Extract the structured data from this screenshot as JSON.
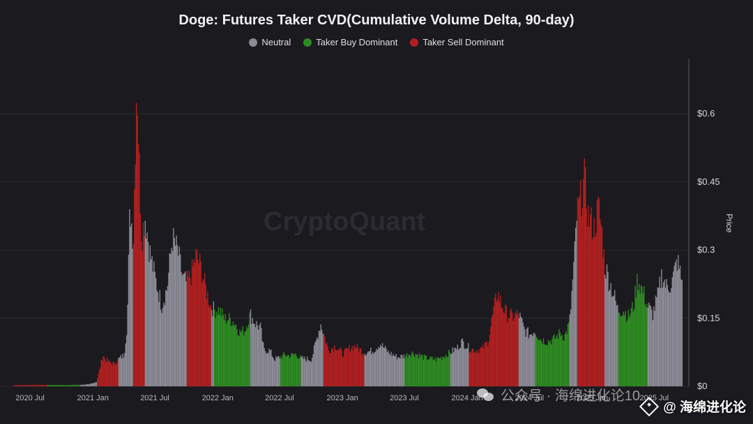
{
  "title": "Doge: Futures Taker CVD(Cumulative Volume Delta, 90-day)",
  "legend": [
    {
      "label": "Neutral",
      "color": "#8c8b96"
    },
    {
      "label": "Taker Buy Dominant",
      "color": "#2e8b22"
    },
    {
      "label": "Taker Sell Dominant",
      "color": "#b02020"
    }
  ],
  "watermark": "CryptoQuant",
  "overlay": {
    "account_label": "@ 海绵进化论",
    "wechat_text": "公众号 · 海绵进化论10"
  },
  "chart_data": {
    "type": "bar",
    "title": "Doge: Futures Taker CVD(Cumulative Volume Delta, 90-day)",
    "ylabel": "Price",
    "xlabel": "",
    "ylim": [
      0,
      0.72
    ],
    "y_ticks": [
      "$0",
      "$0.15",
      "$0.3",
      "$0.45",
      "$0.6"
    ],
    "y_tick_values": [
      0,
      0.15,
      0.3,
      0.45,
      0.6
    ],
    "x_ticks": [
      "2020 Jul",
      "2021 Jan",
      "2021 Jul",
      "2022 Jan",
      "2022 Jul",
      "2023 Jan",
      "2023 Jul",
      "2024 Jan",
      "2024 Jul",
      "2025 Jan",
      "2025 Jul"
    ],
    "x_range": [
      "2020-05-15",
      "2025-09-20"
    ],
    "legend_position": "top-center",
    "grid": true,
    "points": [
      [
        "2020-05-15",
        0.0025,
        "sell"
      ],
      [
        "2020-07-01",
        0.003,
        "sell"
      ],
      [
        "2020-08-20",
        0.0032,
        "buy"
      ],
      [
        "2020-10-10",
        0.0027,
        "buy"
      ],
      [
        "2020-11-25",
        0.0035,
        "neutral"
      ],
      [
        "2020-12-20",
        0.0045,
        "neutral"
      ],
      [
        "2021-01-10",
        0.01,
        "sell"
      ],
      [
        "2021-01-20",
        0.04,
        "sell"
      ],
      [
        "2021-01-29",
        0.07,
        "sell"
      ],
      [
        "2021-02-05",
        0.06,
        "sell"
      ],
      [
        "2021-02-15",
        0.055,
        "sell"
      ],
      [
        "2021-03-01",
        0.05,
        "sell"
      ],
      [
        "2021-03-15",
        0.06,
        "neutral"
      ],
      [
        "2021-04-01",
        0.07,
        "neutral"
      ],
      [
        "2021-04-10",
        0.14,
        "neutral"
      ],
      [
        "2021-04-18",
        0.4,
        "neutral"
      ],
      [
        "2021-04-28",
        0.32,
        "sell"
      ],
      [
        "2021-05-05",
        0.58,
        "sell"
      ],
      [
        "2021-05-08",
        0.69,
        "sell"
      ],
      [
        "2021-05-15",
        0.5,
        "sell"
      ],
      [
        "2021-05-22",
        0.33,
        "sell"
      ],
      [
        "2021-06-01",
        0.38,
        "neutral"
      ],
      [
        "2021-06-15",
        0.3,
        "neutral"
      ],
      [
        "2021-07-01",
        0.24,
        "neutral"
      ],
      [
        "2021-07-20",
        0.18,
        "neutral"
      ],
      [
        "2021-08-05",
        0.22,
        "neutral"
      ],
      [
        "2021-08-20",
        0.33,
        "neutral"
      ],
      [
        "2021-09-05",
        0.3,
        "neutral"
      ],
      [
        "2021-09-20",
        0.24,
        "neutral"
      ],
      [
        "2021-10-01",
        0.23,
        "sell"
      ],
      [
        "2021-10-15",
        0.25,
        "sell"
      ],
      [
        "2021-10-28",
        0.29,
        "sell"
      ],
      [
        "2021-11-10",
        0.27,
        "sell"
      ],
      [
        "2021-11-25",
        0.22,
        "sell"
      ],
      [
        "2021-12-10",
        0.18,
        "neutral"
      ],
      [
        "2021-12-20",
        0.17,
        "buy"
      ],
      [
        "2022-01-05",
        0.17,
        "buy"
      ],
      [
        "2022-01-20",
        0.15,
        "buy"
      ],
      [
        "2022-02-05",
        0.15,
        "buy"
      ],
      [
        "2022-02-20",
        0.14,
        "buy"
      ],
      [
        "2022-03-05",
        0.12,
        "buy"
      ],
      [
        "2022-03-20",
        0.125,
        "buy"
      ],
      [
        "2022-04-05",
        0.16,
        "neutral"
      ],
      [
        "2022-04-20",
        0.14,
        "neutral"
      ],
      [
        "2022-05-05",
        0.13,
        "neutral"
      ],
      [
        "2022-05-15",
        0.08,
        "neutral"
      ],
      [
        "2022-06-01",
        0.08,
        "neutral"
      ],
      [
        "2022-06-15",
        0.06,
        "neutral"
      ],
      [
        "2022-07-01",
        0.065,
        "buy"
      ],
      [
        "2022-07-15",
        0.07,
        "buy"
      ],
      [
        "2022-08-01",
        0.068,
        "buy"
      ],
      [
        "2022-08-15",
        0.072,
        "buy"
      ],
      [
        "2022-09-01",
        0.062,
        "neutral"
      ],
      [
        "2022-10-01",
        0.06,
        "neutral"
      ],
      [
        "2022-10-28",
        0.14,
        "neutral"
      ],
      [
        "2022-11-05",
        0.12,
        "sell"
      ],
      [
        "2022-11-20",
        0.08,
        "sell"
      ],
      [
        "2022-12-10",
        0.09,
        "sell"
      ],
      [
        "2023-01-01",
        0.072,
        "sell"
      ],
      [
        "2023-01-20",
        0.085,
        "sell"
      ],
      [
        "2023-02-05",
        0.09,
        "sell"
      ],
      [
        "2023-02-20",
        0.082,
        "sell"
      ],
      [
        "2023-03-05",
        0.075,
        "neutral"
      ],
      [
        "2023-04-01",
        0.08,
        "neutral"
      ],
      [
        "2023-04-20",
        0.095,
        "neutral"
      ],
      [
        "2023-05-15",
        0.075,
        "neutral"
      ],
      [
        "2023-06-10",
        0.065,
        "neutral"
      ],
      [
        "2023-07-01",
        0.068,
        "buy"
      ],
      [
        "2023-07-20",
        0.075,
        "buy"
      ],
      [
        "2023-08-10",
        0.07,
        "buy"
      ],
      [
        "2023-09-01",
        0.063,
        "buy"
      ],
      [
        "2023-10-01",
        0.06,
        "buy"
      ],
      [
        "2023-10-25",
        0.068,
        "buy"
      ],
      [
        "2023-11-10",
        0.075,
        "neutral"
      ],
      [
        "2023-12-01",
        0.085,
        "neutral"
      ],
      [
        "2023-12-15",
        0.1,
        "neutral"
      ],
      [
        "2024-01-05",
        0.085,
        "sell"
      ],
      [
        "2024-01-25",
        0.08,
        "sell"
      ],
      [
        "2024-02-15",
        0.085,
        "sell"
      ],
      [
        "2024-03-01",
        0.1,
        "sell"
      ],
      [
        "2024-03-15",
        0.16,
        "sell"
      ],
      [
        "2024-03-28",
        0.21,
        "sell"
      ],
      [
        "2024-04-10",
        0.18,
        "sell"
      ],
      [
        "2024-04-25",
        0.16,
        "sell"
      ],
      [
        "2024-05-10",
        0.155,
        "sell"
      ],
      [
        "2024-05-30",
        0.16,
        "neutral"
      ],
      [
        "2024-06-15",
        0.125,
        "neutral"
      ],
      [
        "2024-07-01",
        0.115,
        "neutral"
      ],
      [
        "2024-07-15",
        0.125,
        "buy"
      ],
      [
        "2024-08-01",
        0.105,
        "buy"
      ],
      [
        "2024-08-20",
        0.1,
        "buy"
      ],
      [
        "2024-09-10",
        0.105,
        "buy"
      ],
      [
        "2024-09-28",
        0.12,
        "buy"
      ],
      [
        "2024-10-10",
        0.11,
        "buy"
      ],
      [
        "2024-10-25",
        0.14,
        "neutral"
      ],
      [
        "2024-11-08",
        0.28,
        "neutral"
      ],
      [
        "2024-11-15",
        0.38,
        "sell"
      ],
      [
        "2024-11-25",
        0.41,
        "sell"
      ],
      [
        "2024-12-08",
        0.46,
        "sell"
      ],
      [
        "2024-12-18",
        0.38,
        "sell"
      ],
      [
        "2025-01-05",
        0.35,
        "sell"
      ],
      [
        "2025-01-18",
        0.4,
        "sell"
      ],
      [
        "2025-01-28",
        0.34,
        "sell"
      ],
      [
        "2025-02-05",
        0.27,
        "neutral"
      ],
      [
        "2025-02-20",
        0.23,
        "neutral"
      ],
      [
        "2025-03-05",
        0.2,
        "neutral"
      ],
      [
        "2025-03-15",
        0.17,
        "buy"
      ],
      [
        "2025-04-01",
        0.17,
        "buy"
      ],
      [
        "2025-04-15",
        0.155,
        "buy"
      ],
      [
        "2025-05-01",
        0.18,
        "buy"
      ],
      [
        "2025-05-12",
        0.24,
        "buy"
      ],
      [
        "2025-05-28",
        0.21,
        "buy"
      ],
      [
        "2025-06-10",
        0.18,
        "neutral"
      ],
      [
        "2025-06-25",
        0.16,
        "neutral"
      ],
      [
        "2025-07-10",
        0.2,
        "neutral"
      ],
      [
        "2025-07-22",
        0.25,
        "neutral"
      ],
      [
        "2025-08-05",
        0.22,
        "neutral"
      ],
      [
        "2025-08-20",
        0.23,
        "neutral"
      ],
      [
        "2025-09-05",
        0.28,
        "neutral"
      ],
      [
        "2025-09-20",
        0.23,
        "neutral"
      ]
    ]
  }
}
